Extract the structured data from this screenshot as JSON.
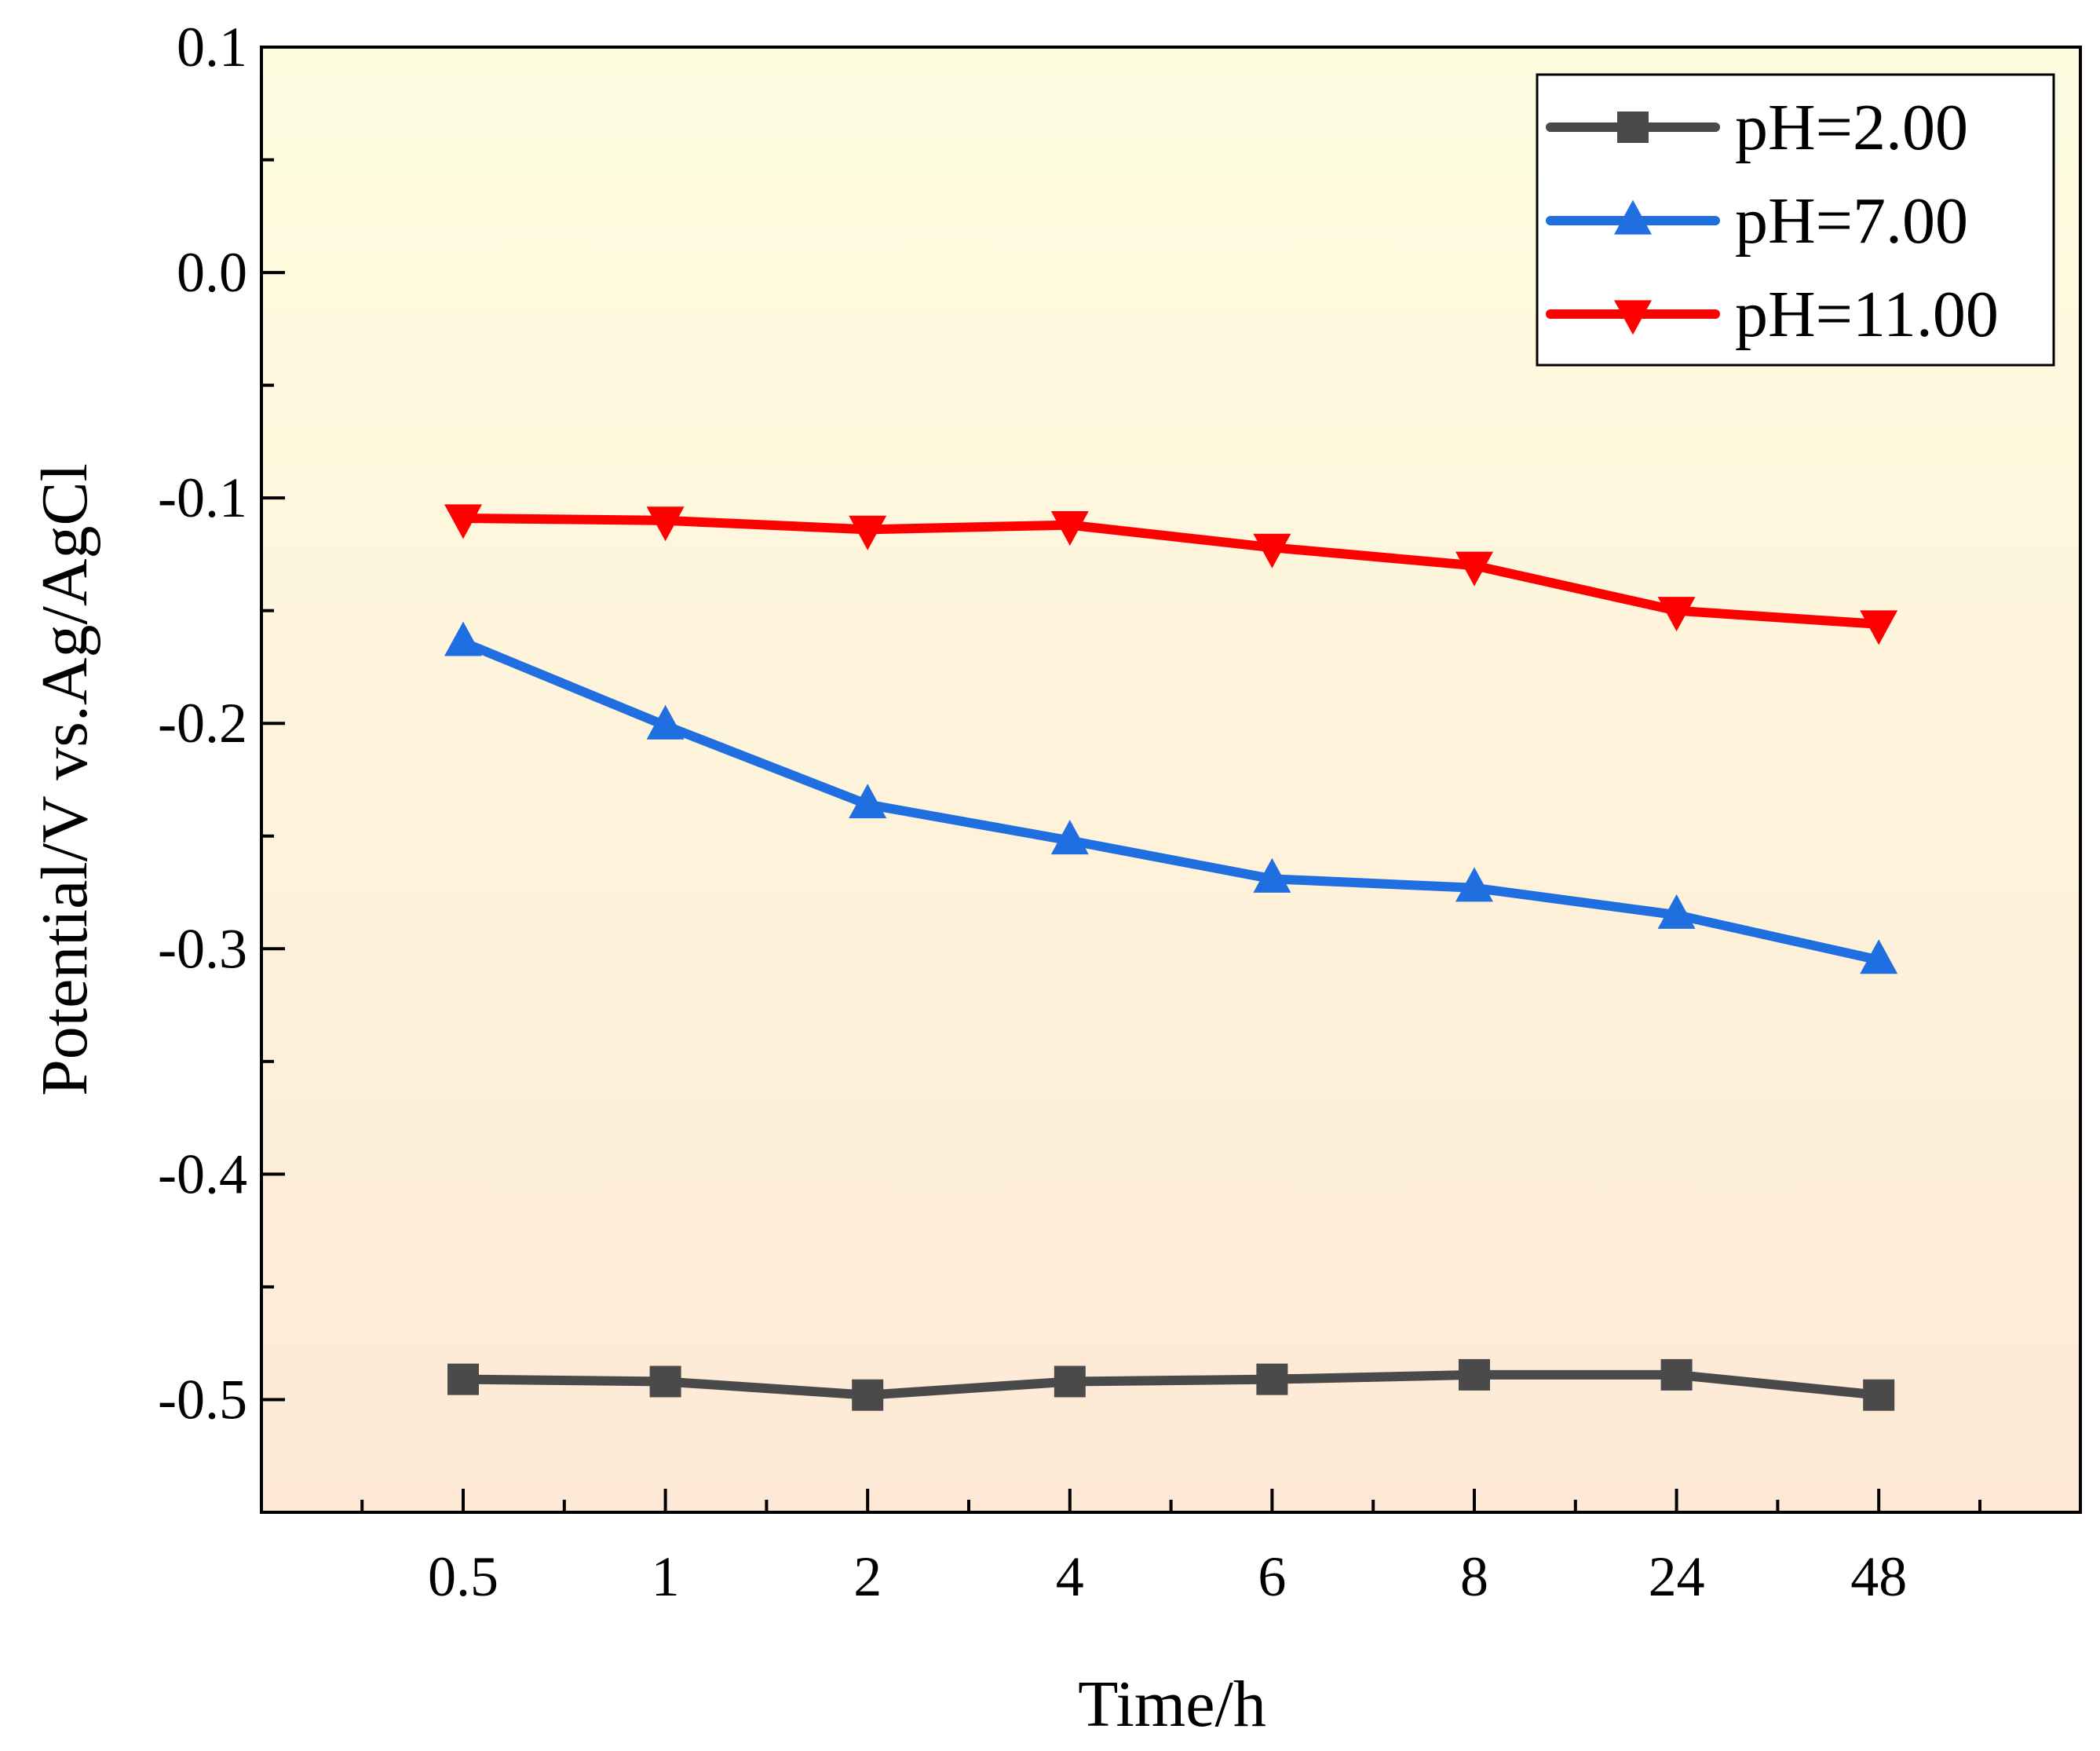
{
  "chart_data": {
    "type": "line",
    "title": "",
    "xlabel": "Time/h",
    "ylabel": "Potential/V vs.Ag/AgCl",
    "categories": [
      "0.5",
      "1",
      "2",
      "4",
      "6",
      "8",
      "24",
      "48"
    ],
    "ylim": [
      -0.55,
      0.1
    ],
    "yticks": [
      "0.1",
      "0.0",
      "-0.1",
      "-0.2",
      "-0.3",
      "-0.4",
      "-0.5"
    ],
    "grid": false,
    "legend_position": "top-right",
    "series": [
      {
        "name": "pH=2.00",
        "color": "#4a4a4a",
        "marker": "square",
        "values": [
          -0.491,
          -0.492,
          -0.498,
          -0.492,
          -0.491,
          -0.489,
          -0.489,
          -0.498
        ]
      },
      {
        "name": "pH=7.00",
        "color": "#1f6fe0",
        "marker": "triangle-up",
        "values": [
          -0.164,
          -0.201,
          -0.236,
          -0.252,
          -0.269,
          -0.273,
          -0.285,
          -0.305
        ]
      },
      {
        "name": "pH=11.00",
        "color": "#ff0000",
        "marker": "triangle-down",
        "values": [
          -0.109,
          -0.11,
          -0.114,
          -0.112,
          -0.122,
          -0.13,
          -0.15,
          -0.156
        ]
      }
    ]
  }
}
